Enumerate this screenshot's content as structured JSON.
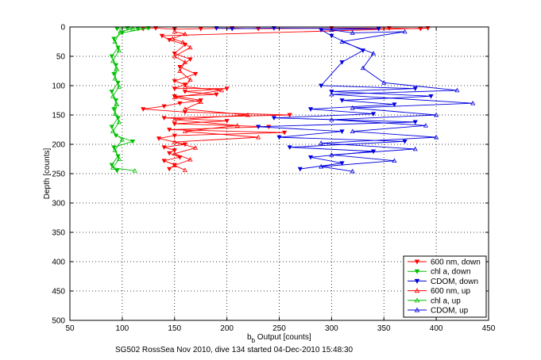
{
  "chart_data": {
    "type": "scatter",
    "title": "",
    "xlabel_main": "b",
    "xlabel_sub": "b",
    "xlabel_rest": " Output [counts]",
    "ylabel": "Depth [counts]",
    "caption": "SG502 RossSea Nov 2010, dive 134 started 04-Dec-2010 15:48:30",
    "xlim": [
      50,
      450
    ],
    "ylim": [
      0,
      500
    ],
    "y_reversed": true,
    "grid": true,
    "xticks": [
      50,
      100,
      150,
      200,
      250,
      300,
      350,
      400,
      450
    ],
    "yticks": [
      0,
      50,
      100,
      150,
      200,
      250,
      300,
      350,
      400,
      450,
      500
    ],
    "legend_position": "bottom-right",
    "series": [
      {
        "name": "600 nm, down",
        "color": "#ff0000",
        "marker": "triangle-down",
        "connected": true,
        "points": [
          [
            120,
            3
          ],
          [
            132,
            2
          ],
          [
            150,
            4
          ],
          [
            175,
            3
          ],
          [
            205,
            2
          ],
          [
            230,
            3
          ],
          [
            300,
            2
          ],
          [
            355,
            2
          ],
          [
            385,
            3
          ],
          [
            392,
            2
          ],
          [
            138,
            15
          ],
          [
            145,
            22
          ],
          [
            160,
            30
          ],
          [
            150,
            45
          ],
          [
            165,
            55
          ],
          [
            155,
            68
          ],
          [
            170,
            80
          ],
          [
            150,
            92
          ],
          [
            160,
            98
          ],
          [
            150,
            105
          ],
          [
            200,
            105
          ],
          [
            160,
            110
          ],
          [
            190,
            115
          ],
          [
            150,
            118
          ],
          [
            175,
            125
          ],
          [
            155,
            130
          ],
          [
            140,
            135
          ],
          [
            120,
            140
          ],
          [
            160,
            145
          ],
          [
            260,
            150
          ],
          [
            140,
            155
          ],
          [
            200,
            160
          ],
          [
            150,
            165
          ],
          [
            240,
            170
          ],
          [
            145,
            175
          ],
          [
            255,
            180
          ],
          [
            150,
            185
          ],
          [
            135,
            190
          ],
          [
            160,
            200
          ],
          [
            140,
            205
          ],
          [
            150,
            210
          ],
          [
            145,
            215
          ],
          [
            155,
            222
          ],
          [
            140,
            228
          ],
          [
            150,
            235
          ],
          [
            145,
            242
          ]
        ]
      },
      {
        "name": "chl a, down",
        "color": "#00c000",
        "marker": "triangle-down",
        "connected": true,
        "points": [
          [
            95,
            3
          ],
          [
            105,
            2
          ],
          [
            115,
            3
          ],
          [
            125,
            2
          ],
          [
            100,
            10
          ],
          [
            92,
            20
          ],
          [
            96,
            35
          ],
          [
            90,
            50
          ],
          [
            94,
            65
          ],
          [
            92,
            80
          ],
          [
            96,
            95
          ],
          [
            90,
            110
          ],
          [
            94,
            125
          ],
          [
            92,
            140
          ],
          [
            96,
            155
          ],
          [
            90,
            170
          ],
          [
            94,
            185
          ],
          [
            110,
            195
          ],
          [
            92,
            205
          ],
          [
            96,
            220
          ],
          [
            90,
            235
          ],
          [
            95,
            245
          ]
        ]
      },
      {
        "name": "CDOM, down",
        "color": "#0000e0",
        "marker": "triangle-down",
        "connected": true,
        "points": [
          [
            190,
            2
          ],
          [
            205,
            3
          ],
          [
            245,
            2
          ],
          [
            345,
            3
          ],
          [
            290,
            5
          ],
          [
            300,
            15
          ],
          [
            330,
            40
          ],
          [
            310,
            60
          ],
          [
            290,
            100
          ],
          [
            380,
            105
          ],
          [
            300,
            110
          ],
          [
            395,
            118
          ],
          [
            310,
            125
          ],
          [
            360,
            132
          ],
          [
            280,
            140
          ],
          [
            340,
            148
          ],
          [
            245,
            155
          ],
          [
            380,
            162
          ],
          [
            230,
            170
          ],
          [
            310,
            178
          ],
          [
            250,
            188
          ],
          [
            370,
            195
          ],
          [
            260,
            205
          ],
          [
            340,
            212
          ],
          [
            280,
            222
          ],
          [
            310,
            232
          ],
          [
            270,
            242
          ]
        ]
      },
      {
        "name": "600 nm, up",
        "color": "#ff0000",
        "marker": "triangle-up",
        "connected": true,
        "points": [
          [
            150,
            8
          ],
          [
            160,
            12
          ],
          [
            148,
            20
          ],
          [
            158,
            26
          ],
          [
            165,
            35
          ],
          [
            150,
            50
          ],
          [
            160,
            60
          ],
          [
            155,
            75
          ],
          [
            165,
            90
          ],
          [
            160,
            102
          ],
          [
            195,
            108
          ],
          [
            150,
            120
          ],
          [
            175,
            128
          ],
          [
            160,
            140
          ],
          [
            220,
            150
          ],
          [
            150,
            158
          ],
          [
            210,
            168
          ],
          [
            160,
            178
          ],
          [
            230,
            188
          ],
          [
            150,
            196
          ],
          [
            170,
            206
          ],
          [
            150,
            216
          ],
          [
            165,
            226
          ],
          [
            150,
            236
          ],
          [
            160,
            244
          ]
        ]
      },
      {
        "name": "chl a, up",
        "color": "#00c000",
        "marker": "triangle-up",
        "connected": true,
        "points": [
          [
            110,
            3
          ],
          [
            98,
            8
          ],
          [
            93,
            25
          ],
          [
            97,
            40
          ],
          [
            91,
            58
          ],
          [
            95,
            72
          ],
          [
            93,
            88
          ],
          [
            97,
            102
          ],
          [
            91,
            118
          ],
          [
            95,
            132
          ],
          [
            93,
            148
          ],
          [
            97,
            162
          ],
          [
            91,
            178
          ],
          [
            100,
            192
          ],
          [
            93,
            210
          ],
          [
            97,
            225
          ],
          [
            91,
            240
          ],
          [
            112,
            245
          ]
        ]
      },
      {
        "name": "CDOM, up",
        "color": "#0000e0",
        "marker": "triangle-up",
        "connected": true,
        "points": [
          [
            300,
            5
          ],
          [
            320,
            10
          ],
          [
            370,
            8
          ],
          [
            310,
            25
          ],
          [
            340,
            45
          ],
          [
            330,
            70
          ],
          [
            350,
            95
          ],
          [
            420,
            108
          ],
          [
            300,
            115
          ],
          [
            435,
            130
          ],
          [
            320,
            138
          ],
          [
            400,
            150
          ],
          [
            300,
            158
          ],
          [
            390,
            168
          ],
          [
            320,
            178
          ],
          [
            400,
            188
          ],
          [
            290,
            198
          ],
          [
            380,
            208
          ],
          [
            300,
            218
          ],
          [
            360,
            228
          ],
          [
            290,
            238
          ],
          [
            320,
            246
          ]
        ]
      }
    ]
  }
}
